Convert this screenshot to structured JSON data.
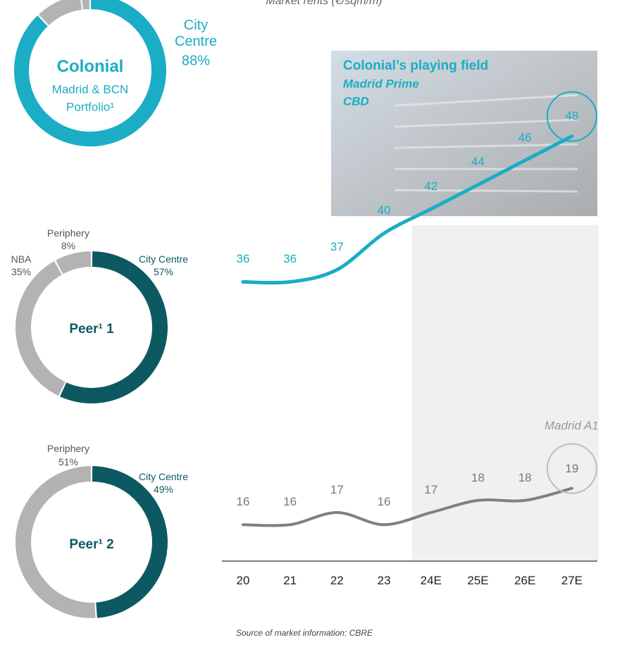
{
  "chart_data": [
    {
      "type": "donut",
      "title": "Colonial",
      "subtitle": "Madrid & BCN Portfolio¹",
      "categories": [
        "City Centre",
        null,
        null
      ],
      "values": [
        88,
        10,
        2
      ],
      "value_labels": [
        "88%",
        null,
        null
      ],
      "colors": [
        "#1aadc5",
        "#b3b3b3",
        "#b3b3b3"
      ]
    },
    {
      "type": "donut",
      "title": "Peer¹ 1",
      "categories": [
        "City Centre",
        "NBA",
        "Periphery"
      ],
      "values": [
        57,
        35,
        8
      ],
      "value_labels": [
        "57%",
        "35%",
        "8%"
      ],
      "colors": [
        "#0d5962",
        "#b3b3b3",
        "#b3b3b3"
      ]
    },
    {
      "type": "donut",
      "title": "Peer¹ 2",
      "categories": [
        "City Centre",
        "Periphery"
      ],
      "values": [
        49,
        51
      ],
      "value_labels": [
        "49%",
        "51%"
      ],
      "colors": [
        "#0d5962",
        "#b3b3b3"
      ]
    },
    {
      "type": "line",
      "title": "Market rents (€/sqm/m)",
      "annotation": "Colonial’s playing field",
      "source": "Source of market information: CBRE",
      "categories": [
        "20",
        "21",
        "22",
        "23",
        "24E",
        "25E",
        "26E",
        "27E"
      ],
      "ylim": [
        13,
        54
      ],
      "series": [
        {
          "name": "Madrid Prime CBD",
          "color": "#1aadc5",
          "values": [
            36,
            36,
            37,
            40,
            42,
            44,
            46,
            48
          ]
        },
        {
          "name": "Madrid A1",
          "color": "#808080",
          "values": [
            16,
            16,
            17,
            16,
            17,
            18,
            18,
            19
          ]
        }
      ]
    }
  ]
}
